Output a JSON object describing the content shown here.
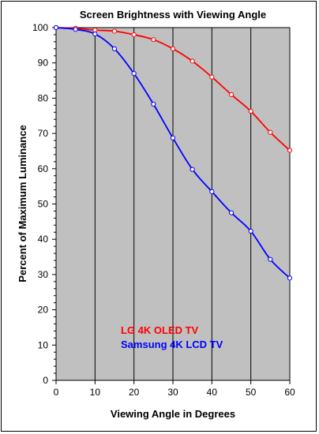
{
  "chart_data": {
    "type": "line",
    "title": "Screen Brightness with Viewing Angle",
    "xlabel": "Viewing Angle in Degrees",
    "ylabel": "Percent of Maximum Luminance",
    "xlim": [
      0,
      60
    ],
    "ylim": [
      0,
      100
    ],
    "xticks": [
      0,
      10,
      20,
      30,
      40,
      50,
      60
    ],
    "yticks": [
      0,
      10,
      20,
      30,
      40,
      50,
      60,
      70,
      80,
      90,
      100
    ],
    "grid": "vertical and horizontal minor lines",
    "plot_background": "#c0c0c0",
    "legend_position": "bottom-left inside plot",
    "x": [
      0,
      5,
      10,
      15,
      20,
      25,
      30,
      35,
      40,
      45,
      50,
      55,
      60
    ],
    "series": [
      {
        "name": "LG 4K OLED TV",
        "color": "#ff0000",
        "values": [
          100,
          99.8,
          99.3,
          99,
          98,
          96.6,
          94,
          90.5,
          86,
          81,
          76.3,
          70.3,
          65.2
        ]
      },
      {
        "name": "Samsung 4K LCD TV",
        "color": "#0000ff",
        "values": [
          100,
          99.5,
          98.2,
          94,
          87,
          78.3,
          68.7,
          59.8,
          53.5,
          47.5,
          42.3,
          34.3,
          29
        ]
      }
    ]
  }
}
